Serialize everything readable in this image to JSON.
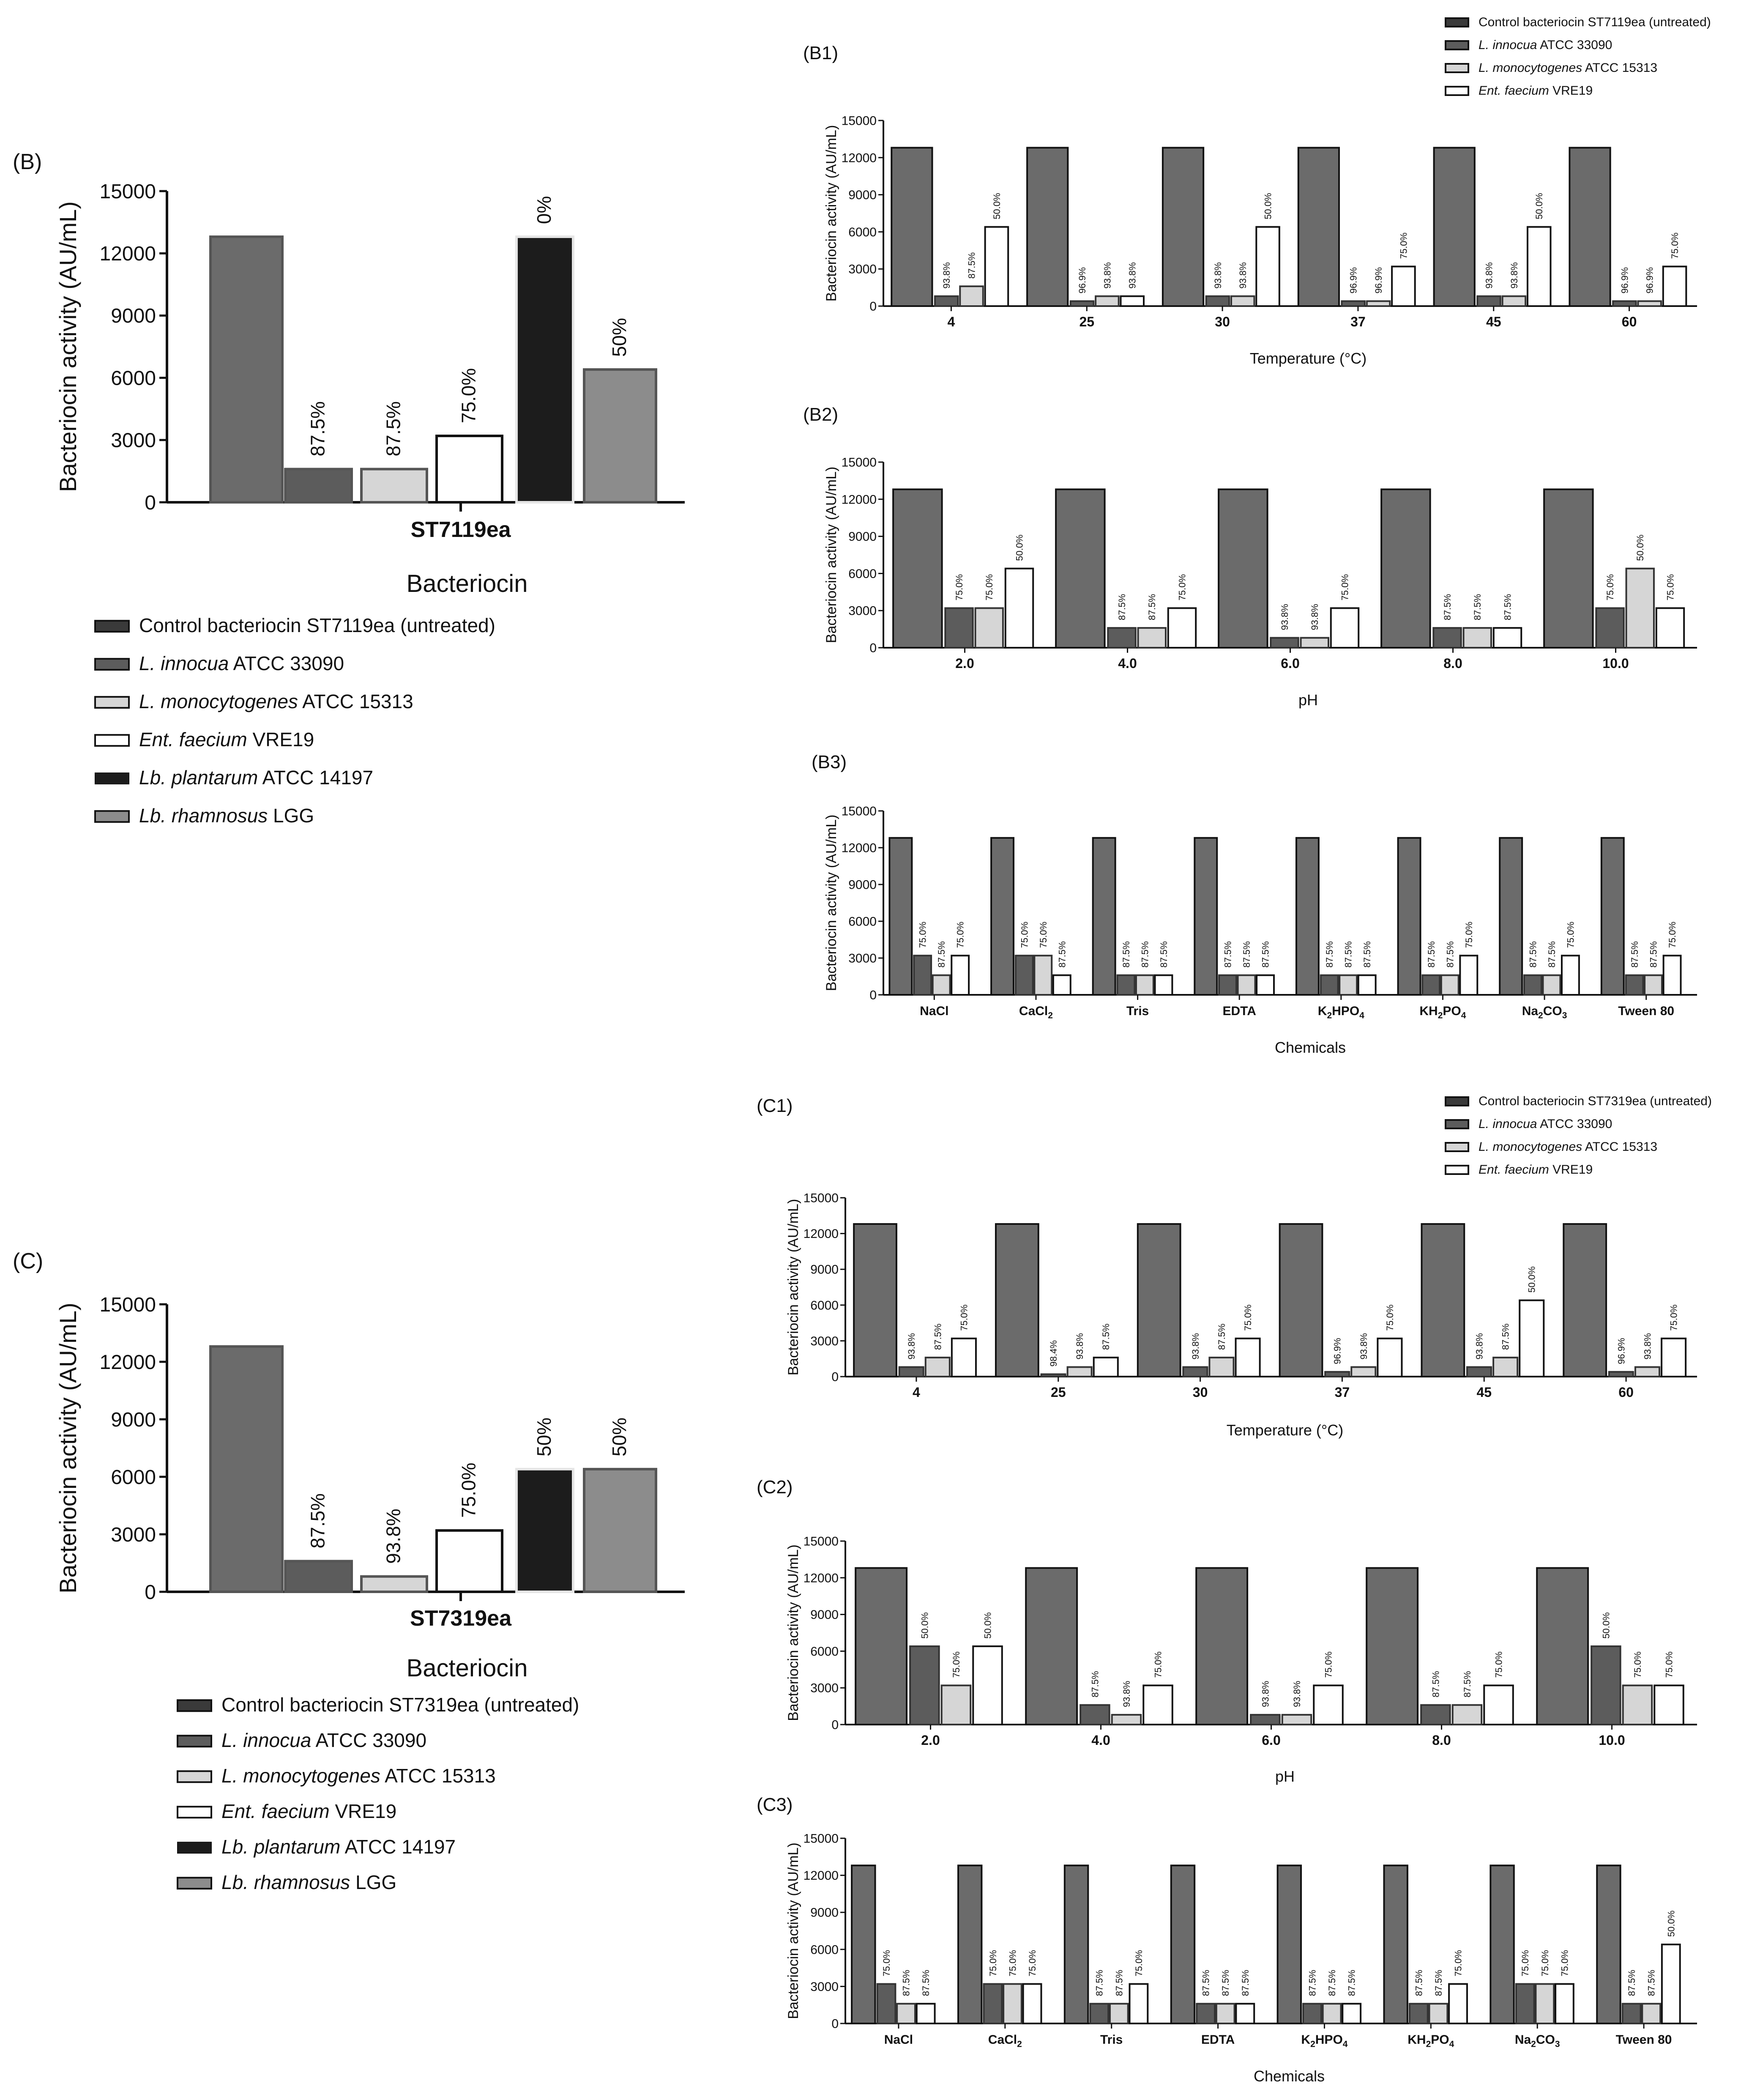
{
  "colors": {
    "control": "#6b6b6b",
    "innocua": "#5c5c5c",
    "monocytogenes": "#d6d6d6",
    "faecium": "#ffffff",
    "plantarum": "#1c1c1c",
    "rhamnosus": "#8c8c8c"
  },
  "legend_b": {
    "title": "Bacteriocin",
    "items": [
      {
        "text": "Control bacteriocin ST7119ea (untreated)",
        "italic": "",
        "color": "#3a3a3a"
      },
      {
        "italic": "L. innocua",
        "text": " ATCC 33090",
        "color": "#5c5c5c"
      },
      {
        "italic": "L. monocytogenes",
        "text": " ATCC 15313",
        "color": "#d6d6d6"
      },
      {
        "italic": "Ent. faecium",
        "text": " VRE19",
        "color": "#ffffff"
      },
      {
        "italic": "Lb. plantarum",
        "text": " ATCC 14197",
        "color": "#1c1c1c"
      },
      {
        "italic": "Lb. rhamnosus",
        "text": " LGG",
        "color": "#8c8c8c"
      }
    ]
  },
  "legend_c": {
    "title": "Bacteriocin",
    "items": [
      {
        "text": "Control bacteriocin ST7319ea (untreated)",
        "italic": "",
        "color": "#3a3a3a"
      },
      {
        "italic": "L. innocua",
        "text": " ATCC 33090",
        "color": "#5c5c5c"
      },
      {
        "italic": "L. monocytogenes",
        "text": " ATCC 15313",
        "color": "#d6d6d6"
      },
      {
        "italic": "Ent. faecium",
        "text": " VRE19",
        "color": "#ffffff"
      },
      {
        "italic": "Lb. plantarum",
        "text": " ATCC 14197",
        "color": "#1c1c1c"
      },
      {
        "italic": "Lb. rhamnosus",
        "text": " LGG",
        "color": "#8c8c8c"
      }
    ]
  },
  "legend_b1": {
    "items": [
      {
        "text": "Control bacteriocin ST7119ea (untreated)",
        "italic": "",
        "color": "#3a3a3a"
      },
      {
        "italic": "L. innocua",
        "text": " ATCC 33090",
        "color": "#5c5c5c"
      },
      {
        "italic": "L. monocytogenes",
        "text": " ATCC 15313",
        "color": "#d6d6d6"
      },
      {
        "italic": "Ent. faecium",
        "text": " VRE19",
        "color": "#ffffff"
      }
    ]
  },
  "legend_c1": {
    "items": [
      {
        "text": "Control bacteriocin  ST7319ea (untreated)",
        "italic": "",
        "color": "#3a3a3a"
      },
      {
        "italic": "L. innocua",
        "text": " ATCC 33090",
        "color": "#5c5c5c"
      },
      {
        "italic": "L. monocytogenes",
        "text": " ATCC 15313",
        "color": "#d6d6d6"
      },
      {
        "italic": "Ent. faecium",
        "text": " VRE19",
        "color": "#ffffff"
      }
    ]
  },
  "chart_data": [
    {
      "id": "B",
      "panel_label": "(B)",
      "type": "bar",
      "ylabel": "Bacteriocin activity (AU/mL)",
      "xlabel": "ST7119ea",
      "ylim": [
        0,
        15000
      ],
      "yticks": [
        "0",
        "3000",
        "6000",
        "9000",
        "12000",
        "15000"
      ],
      "categories": [
        "ST7119ea"
      ],
      "series": [
        {
          "name": "Control bacteriocin ST7119ea (untreated)",
          "values": [
            12800
          ],
          "labels": [
            ""
          ],
          "color": "#6b6b6b"
        },
        {
          "name": "L. innocua ATCC 33090",
          "values": [
            1600
          ],
          "labels": [
            "87.5%"
          ],
          "color": "#5c5c5c"
        },
        {
          "name": "L. monocytogenes ATCC 15313",
          "values": [
            1600
          ],
          "labels": [
            "87.5%"
          ],
          "color": "#d6d6d6"
        },
        {
          "name": "Ent. faecium VRE19",
          "values": [
            3200
          ],
          "labels": [
            "75.0%"
          ],
          "color": "#ffffff"
        },
        {
          "name": "Lb. plantarum ATCC 14197",
          "values": [
            12800
          ],
          "labels": [
            "0%"
          ],
          "color": "#1c1c1c"
        },
        {
          "name": "Lb. rhamnosus LGG",
          "values": [
            6400
          ],
          "labels": [
            "50%"
          ],
          "color": "#8c8c8c"
        }
      ]
    },
    {
      "id": "B1",
      "panel_label": "(B1)",
      "type": "bar",
      "ylabel": "Bacteriocin activity (AU/mL)",
      "xlabel": "Temperature (°C)",
      "ylim": [
        0,
        15000
      ],
      "yticks": [
        "0",
        "3000",
        "6000",
        "9000",
        "12000",
        "15000"
      ],
      "categories": [
        "4",
        "25",
        "30",
        "37",
        "45",
        "60"
      ],
      "series": [
        {
          "name": "Control",
          "values": [
            12800,
            12800,
            12800,
            12800,
            12800,
            12800
          ],
          "labels": [
            "",
            "",
            "",
            "",
            "",
            ""
          ]
        },
        {
          "name": "L. innocua ATCC 33090",
          "values": [
            800,
            400,
            800,
            400,
            800,
            400
          ],
          "labels": [
            "93.8%",
            "96.9%",
            "93.8%",
            "96.9%",
            "93.8%",
            "96.9%"
          ]
        },
        {
          "name": "L. monocytogenes ATCC 15313",
          "values": [
            1600,
            800,
            800,
            400,
            800,
            400
          ],
          "labels": [
            "87.5%",
            "93.8%",
            "93.8%",
            "96.9%",
            "93.8%",
            "96.9%"
          ]
        },
        {
          "name": "Ent. faecium VRE19",
          "values": [
            6400,
            800,
            6400,
            3200,
            6400,
            3200
          ],
          "labels": [
            "50.0%",
            "93.8%",
            "50.0%",
            "75.0%",
            "50.0%",
            "75.0%"
          ]
        }
      ]
    },
    {
      "id": "B2",
      "panel_label": "(B2)",
      "type": "bar",
      "ylabel": "Bacteriocin activity (AU/mL)",
      "xlabel": "pH",
      "ylim": [
        0,
        15000
      ],
      "yticks": [
        "0",
        "3000",
        "6000",
        "9000",
        "12000",
        "15000"
      ],
      "categories": [
        "2.0",
        "4.0",
        "6.0",
        "8.0",
        "10.0"
      ],
      "series": [
        {
          "name": "Control",
          "values": [
            12800,
            12800,
            12800,
            12800,
            12800
          ],
          "labels": [
            "",
            "",
            "",
            "",
            ""
          ]
        },
        {
          "name": "L. innocua ATCC 33090",
          "values": [
            3200,
            1600,
            800,
            1600,
            3200
          ],
          "labels": [
            "75.0%",
            "87.5%",
            "93.8%",
            "87.5%",
            "75.0%"
          ]
        },
        {
          "name": "L. monocytogenes ATCC 15313",
          "values": [
            3200,
            1600,
            800,
            1600,
            6400
          ],
          "labels": [
            "75.0%",
            "87.5%",
            "93.8%",
            "87.5%",
            "50.0%"
          ]
        },
        {
          "name": "Ent. faecium VRE19",
          "values": [
            6400,
            3200,
            3200,
            1600,
            3200
          ],
          "labels": [
            "50.0%",
            "75.0%",
            "75.0%",
            "87.5%",
            "75.0%"
          ]
        }
      ]
    },
    {
      "id": "B3",
      "panel_label": "(B3)",
      "type": "bar",
      "ylabel": "Bacteriocin activity (AU/mL)",
      "xlabel": "Chemicals",
      "ylim": [
        0,
        15000
      ],
      "yticks": [
        "0",
        "3000",
        "6000",
        "9000",
        "12000",
        "15000"
      ],
      "categories": [
        "NaCl",
        "CaCl2",
        "Tris",
        "EDTA",
        "K2HPO4",
        "KH2PO4",
        "Na2CO3",
        "Tween 80"
      ],
      "series": [
        {
          "name": "Control",
          "values": [
            12800,
            12800,
            12800,
            12800,
            12800,
            12800,
            12800,
            12800
          ],
          "labels": [
            "",
            "",
            "",
            "",
            "",
            "",
            "",
            ""
          ]
        },
        {
          "name": "L. innocua ATCC 33090",
          "values": [
            3200,
            3200,
            1600,
            1600,
            1600,
            1600,
            1600,
            1600
          ],
          "labels": [
            "75.0%",
            "75.0%",
            "87.5%",
            "87.5%",
            "87.5%",
            "87.5%",
            "87.5%",
            "87.5%"
          ]
        },
        {
          "name": "L. monocytogenes ATCC 15313",
          "values": [
            1600,
            3200,
            1600,
            1600,
            1600,
            1600,
            1600,
            1600
          ],
          "labels": [
            "87.5%",
            "75.0%",
            "87.5%",
            "87.5%",
            "87.5%",
            "87.5%",
            "87.5%",
            "87.5%"
          ]
        },
        {
          "name": "Ent. faecium VRE19",
          "values": [
            3200,
            1600,
            1600,
            1600,
            1600,
            3200,
            3200,
            3200
          ],
          "labels": [
            "75.0%",
            "87.5%",
            "87.5%",
            "87.5%",
            "87.5%",
            "75.0%",
            "75.0%",
            "75.0%"
          ]
        }
      ]
    },
    {
      "id": "C",
      "panel_label": "(C)",
      "type": "bar",
      "ylabel": "Bacteriocin activity (AU/mL)",
      "xlabel": "ST7319ea",
      "ylim": [
        0,
        15000
      ],
      "yticks": [
        "0",
        "3000",
        "6000",
        "9000",
        "12000",
        "15000"
      ],
      "categories": [
        "ST7319ea"
      ],
      "series": [
        {
          "name": "Control bacteriocin ST7319ea (untreated)",
          "values": [
            12800
          ],
          "labels": [
            ""
          ],
          "color": "#6b6b6b"
        },
        {
          "name": "L. innocua ATCC 33090",
          "values": [
            1600
          ],
          "labels": [
            "87.5%"
          ],
          "color": "#5c5c5c"
        },
        {
          "name": "L. monocytogenes ATCC 15313",
          "values": [
            800
          ],
          "labels": [
            "93.8%"
          ],
          "color": "#d6d6d6"
        },
        {
          "name": "Ent. faecium VRE19",
          "values": [
            3200
          ],
          "labels": [
            "75.0%"
          ],
          "color": "#ffffff"
        },
        {
          "name": "Lb. plantarum ATCC 14197",
          "values": [
            6400
          ],
          "labels": [
            "50%"
          ],
          "color": "#1c1c1c"
        },
        {
          "name": "Lb. rhamnosus LGG",
          "values": [
            6400
          ],
          "labels": [
            "50%"
          ],
          "color": "#8c8c8c"
        }
      ]
    },
    {
      "id": "C1",
      "panel_label": "(C1)",
      "type": "bar",
      "ylabel": "Bacteriocin activity (AU/mL)",
      "xlabel": "Temperature (°C)",
      "ylim": [
        0,
        15000
      ],
      "yticks": [
        "0",
        "3000",
        "6000",
        "9000",
        "12000",
        "15000"
      ],
      "categories": [
        "4",
        "25",
        "30",
        "37",
        "45",
        "60"
      ],
      "series": [
        {
          "name": "Control",
          "values": [
            12800,
            12800,
            12800,
            12800,
            12800,
            12800
          ],
          "labels": [
            "",
            "",
            "",
            "",
            "",
            ""
          ]
        },
        {
          "name": "L. innocua ATCC 33090",
          "values": [
            800,
            200,
            800,
            400,
            800,
            400
          ],
          "labels": [
            "93.8%",
            "98.4%",
            "93.8%",
            "96.9%",
            "93.8%",
            "96.9%"
          ]
        },
        {
          "name": "L. monocytogenes ATCC 15313",
          "values": [
            1600,
            800,
            1600,
            800,
            1600,
            800
          ],
          "labels": [
            "87.5%",
            "93.8%",
            "87.5%",
            "93.8%",
            "87.5%",
            "93.8%"
          ]
        },
        {
          "name": "Ent. faecium VRE19",
          "values": [
            3200,
            1600,
            3200,
            3200,
            6400,
            3200
          ],
          "labels": [
            "75.0%",
            "87.5%",
            "75.0%",
            "75.0%",
            "50.0%",
            "75.0%"
          ]
        }
      ]
    },
    {
      "id": "C2",
      "panel_label": "(C2)",
      "type": "bar",
      "ylabel": "Bacteriocin activity (AU/mL)",
      "xlabel": "pH",
      "ylim": [
        0,
        15000
      ],
      "yticks": [
        "0",
        "3000",
        "6000",
        "9000",
        "12000",
        "15000"
      ],
      "categories": [
        "2.0",
        "4.0",
        "6.0",
        "8.0",
        "10.0"
      ],
      "series": [
        {
          "name": "Control",
          "values": [
            12800,
            12800,
            12800,
            12800,
            12800
          ],
          "labels": [
            "",
            "",
            "",
            "",
            ""
          ]
        },
        {
          "name": "L. innocua ATCC 33090",
          "values": [
            6400,
            1600,
            800,
            1600,
            6400
          ],
          "labels": [
            "50.0%",
            "87.5%",
            "93.8%",
            "87.5%",
            "50.0%"
          ]
        },
        {
          "name": "L. monocytogenes ATCC 15313",
          "values": [
            3200,
            800,
            800,
            1600,
            3200
          ],
          "labels": [
            "75.0%",
            "93.8%",
            "93.8%",
            "87.5%",
            "75.0%"
          ]
        },
        {
          "name": "Ent. faecium VRE19",
          "values": [
            6400,
            3200,
            3200,
            3200,
            3200
          ],
          "labels": [
            "50.0%",
            "75.0%",
            "75.0%",
            "75.0%",
            "75.0%"
          ]
        }
      ]
    },
    {
      "id": "C3",
      "panel_label": "(C3)",
      "type": "bar",
      "ylabel": "Bacteriocin activity (AU/mL)",
      "xlabel": "Chemicals",
      "ylim": [
        0,
        15000
      ],
      "yticks": [
        "0",
        "3000",
        "6000",
        "9000",
        "12000",
        "15000"
      ],
      "categories": [
        "NaCl",
        "CaCl2",
        "Tris",
        "EDTA",
        "K2HPO4",
        "KH2PO4",
        "Na2CO3",
        "Tween 80"
      ],
      "series": [
        {
          "name": "Control",
          "values": [
            12800,
            12800,
            12800,
            12800,
            12800,
            12800,
            12800,
            12800
          ],
          "labels": [
            "",
            "",
            "",
            "",
            "",
            "",
            "",
            ""
          ]
        },
        {
          "name": "L. innocua ATCC 33090",
          "values": [
            3200,
            3200,
            1600,
            1600,
            1600,
            1600,
            3200,
            1600
          ],
          "labels": [
            "75.0%",
            "75.0%",
            "87.5%",
            "87.5%",
            "87.5%",
            "87.5%",
            "75.0%",
            "87.5%"
          ]
        },
        {
          "name": "L. monocytogenes ATCC 15313",
          "values": [
            1600,
            3200,
            1600,
            1600,
            1600,
            1600,
            3200,
            1600
          ],
          "labels": [
            "87.5%",
            "75.0%",
            "87.5%",
            "87.5%",
            "87.5%",
            "87.5%",
            "75.0%",
            "87.5%"
          ]
        },
        {
          "name": "Ent. faecium VRE19",
          "values": [
            1600,
            3200,
            3200,
            1600,
            1600,
            3200,
            3200,
            6400
          ],
          "labels": [
            "87.5%",
            "75.0%",
            "75.0%",
            "87.5%",
            "87.5%",
            "75.0%",
            "75.0%",
            "50.0%"
          ]
        }
      ]
    }
  ]
}
